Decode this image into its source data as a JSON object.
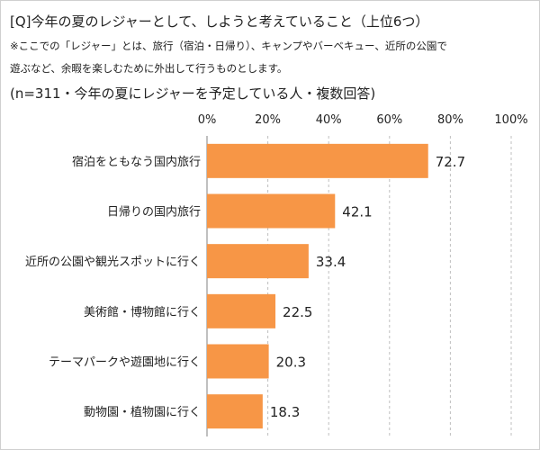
{
  "chart_data": {
    "type": "bar",
    "orientation": "horizontal",
    "title": "[Q]今年の夏のレジャーとして、しようと考えていること（上位6つ）",
    "notes": [
      "※ここでの「レジャー」とは、旅行（宿泊・日帰り）、キャンプやバーベキュー、近所の公園で",
      "遊ぶなど、余暇を楽しむために外出して行うものとします。"
    ],
    "subtitle": "(n=311・今年の夏にレジャーを予定している人・複数回答)",
    "categories": [
      "宿泊をともなう国内旅行",
      "日帰りの国内旅行",
      "近所の公園や観光スポットに行く",
      "美術館・博物館に行く",
      "テーマパークや遊園地に行く",
      "動物園・植物園に行く"
    ],
    "values": [
      72.7,
      42.1,
      33.4,
      22.5,
      20.3,
      18.3
    ],
    "value_labels": [
      "72.7",
      "42.1",
      "33.4",
      "22.5",
      "20.3",
      "18.3"
    ],
    "xlim": [
      0,
      100
    ],
    "ticks": [
      "0%",
      "20%",
      "40%",
      "60%",
      "80%",
      "100%"
    ],
    "tick_values": [
      0,
      20,
      40,
      60,
      80,
      100
    ],
    "axis_position": "top",
    "grid": true,
    "bar_color": "#F79646",
    "grid_color": "#bfbfbf"
  }
}
